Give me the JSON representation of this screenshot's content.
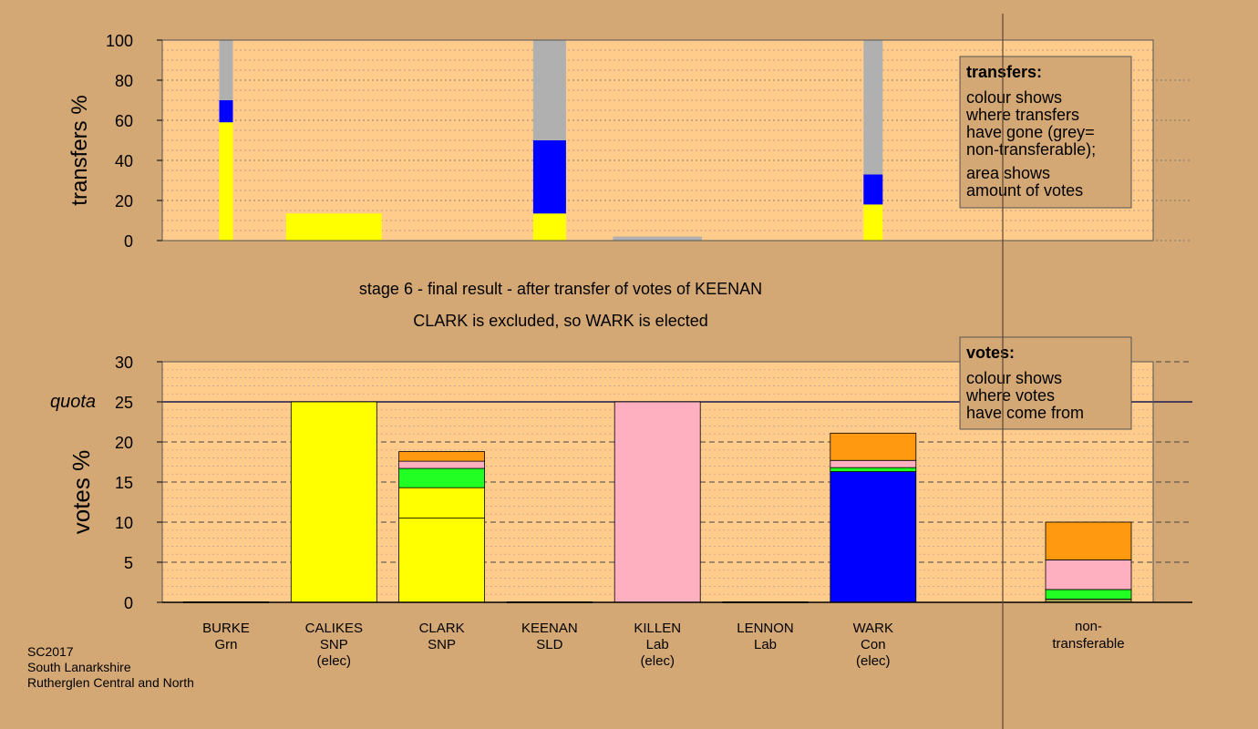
{
  "colors": {
    "page_bg": "#d4a875",
    "plot_bg": "#ffcc8c",
    "yellow": "#ffff00",
    "blue": "#0000ff",
    "grey": "#b0b0b0",
    "pink": "#ffb0c0",
    "green": "#22ff22",
    "orange": "#ff9a10",
    "olive": "#a0a050"
  },
  "chart_data": [
    {
      "type": "bar",
      "stacked": true,
      "ylabel": "transfers %",
      "ylim": [
        0,
        100
      ],
      "yticks": [
        0,
        20,
        40,
        60,
        80,
        100
      ],
      "categories": [
        "BURKE",
        "CALIKES",
        "CLARK",
        "KEENAN",
        "KILLEN",
        "LENNON",
        "WARK"
      ],
      "bars": [
        {
          "category": "BURKE",
          "width_share": 1.0,
          "segments": [
            {
              "color": "yellow",
              "value": 59
            },
            {
              "color": "blue",
              "value": 11
            },
            {
              "color": "grey",
              "value": 30
            }
          ]
        },
        {
          "category": "CALIKES",
          "width_share": 7.0,
          "segments": [
            {
              "color": "yellow",
              "value": 13.5
            }
          ]
        },
        {
          "category": "KEENAN",
          "width_share": 2.4,
          "segments": [
            {
              "color": "yellow",
              "value": 13.5
            },
            {
              "color": "blue",
              "value": 36.5
            },
            {
              "color": "grey",
              "value": 50
            }
          ]
        },
        {
          "category": "KILLEN",
          "width_share": 6.5,
          "segments": [
            {
              "color": "grey",
              "value": 2
            }
          ]
        },
        {
          "category": "WARK",
          "width_share": 1.4,
          "segments": [
            {
              "color": "yellow",
              "value": 18
            },
            {
              "color": "blue",
              "value": 15
            },
            {
              "color": "grey",
              "value": 67
            }
          ]
        }
      ],
      "legend": {
        "title": "transfers:",
        "lines": [
          "colour shows",
          "where transfers",
          "have gone (grey=",
          "non-transferable);",
          "area shows",
          "amount of votes"
        ],
        "position": "top-right"
      }
    },
    {
      "type": "bar",
      "stacked": true,
      "ylabel": "votes %",
      "ylim": [
        0,
        30
      ],
      "yticks": [
        0,
        5,
        10,
        15,
        20,
        25,
        30
      ],
      "quota": {
        "value": 25,
        "label": "quota"
      },
      "categories": [
        {
          "name": "BURKE",
          "party": "Grn",
          "note": ""
        },
        {
          "name": "CALIKES",
          "party": "SNP",
          "note": "(elec)"
        },
        {
          "name": "CLARK",
          "party": "SNP",
          "note": ""
        },
        {
          "name": "KEENAN",
          "party": "SLD",
          "note": ""
        },
        {
          "name": "KILLEN",
          "party": "Lab",
          "note": "(elec)"
        },
        {
          "name": "LENNON",
          "party": "Lab",
          "note": ""
        },
        {
          "name": "WARK",
          "party": "Con",
          "note": "(elec)"
        }
      ],
      "nontransferable_label": [
        "non-",
        "transferable"
      ],
      "bars": [
        {
          "category": "BURKE",
          "segments": []
        },
        {
          "category": "CALIKES",
          "segments": [
            {
              "color": "yellow",
              "value": 25
            }
          ]
        },
        {
          "category": "CLARK",
          "segments": [
            {
              "color": "yellow",
              "value": 10.5
            },
            {
              "color": "yellow",
              "value": 3.8
            },
            {
              "color": "green",
              "value": 2.4
            },
            {
              "color": "pink",
              "value": 0.9
            },
            {
              "color": "orange",
              "value": 1.2
            }
          ]
        },
        {
          "category": "KEENAN",
          "segments": []
        },
        {
          "category": "KILLEN",
          "segments": [
            {
              "color": "pink",
              "value": 25
            }
          ]
        },
        {
          "category": "LENNON",
          "segments": []
        },
        {
          "category": "WARK",
          "segments": [
            {
              "color": "blue",
              "value": 16.3
            },
            {
              "color": "green",
              "value": 0.5
            },
            {
              "color": "pink",
              "value": 0.9
            },
            {
              "color": "orange",
              "value": 3.4
            }
          ]
        },
        {
          "category": "non-transferable",
          "segments": [
            {
              "color": "olive",
              "value": 0.4
            },
            {
              "color": "green",
              "value": 1.2
            },
            {
              "color": "pink",
              "value": 3.7
            },
            {
              "color": "orange",
              "value": 4.7
            }
          ]
        }
      ],
      "legend": {
        "title": "votes:",
        "lines": [
          "colour shows",
          "where votes",
          "have come from"
        ],
        "position": "top-right"
      }
    }
  ],
  "stage_title": "stage 6 - final result - after transfer of votes of KEENAN",
  "stage_subtitle": "CLARK is excluded, so WARK is elected",
  "footer": [
    "SC2017",
    "South Lanarkshire",
    "Rutherglen Central and North"
  ]
}
